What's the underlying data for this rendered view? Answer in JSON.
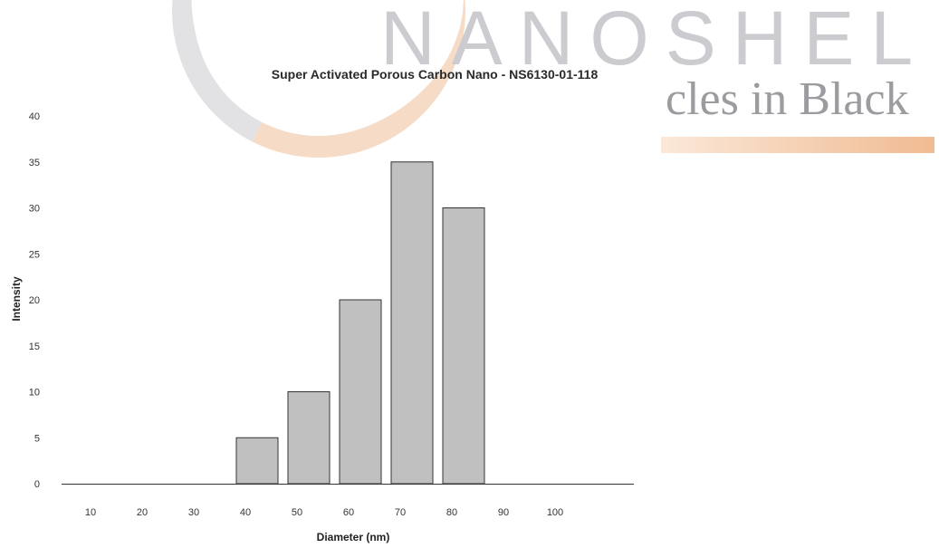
{
  "watermark": {
    "brand": "NANOSHEL",
    "tagline": "cles in Black"
  },
  "chart_data": {
    "type": "bar",
    "title": "Super Activated Porous Carbon Nano - NS6130-01-118",
    "xlabel": "Diameter (nm)",
    "ylabel": "Intensity",
    "categories": [
      "10",
      "20",
      "30",
      "40",
      "50",
      "60",
      "70",
      "80",
      "90",
      "100"
    ],
    "values": [
      0,
      0,
      0,
      5,
      10,
      20,
      35,
      30,
      0,
      0
    ],
    "ylim": [
      0,
      40
    ],
    "yticks": [
      0,
      5,
      10,
      15,
      20,
      25,
      30,
      35,
      40
    ],
    "grid": false,
    "bar_color": "#c0c0c0",
    "bar_edge": "#333333"
  }
}
